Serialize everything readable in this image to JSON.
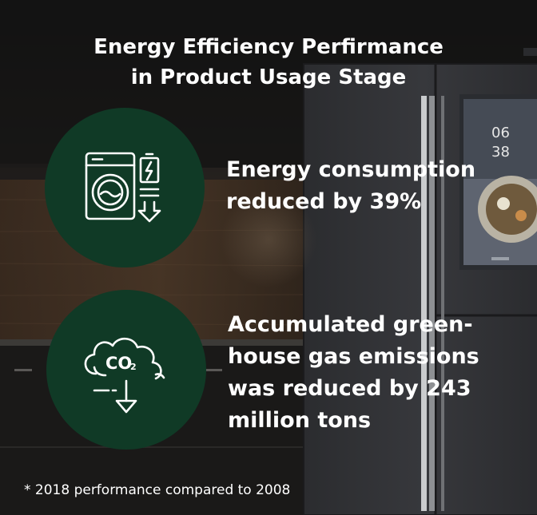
{
  "title": {
    "line1": "Energy Efficiency Perfirmance",
    "line2": "in Product Usage Stage"
  },
  "stat_energy": {
    "icon": "washing-machine-battery-icon",
    "line1": "Energy consumption",
    "line2": "reduced by 39%"
  },
  "stat_emissions": {
    "icon": "co2-cloud-down-icon",
    "co2_main": "CO",
    "co2_sub": "2",
    "line1": "Accumulated green-",
    "line2": "house gas emissions",
    "line3": "was reduced by 243",
    "line4": "million tons"
  },
  "footnote": "* 2018 performance compared to 2008",
  "fridge_display": {
    "time_hours": "06",
    "time_minutes": "38"
  },
  "colors": {
    "circle": "#103a26",
    "text": "#ffffff"
  }
}
